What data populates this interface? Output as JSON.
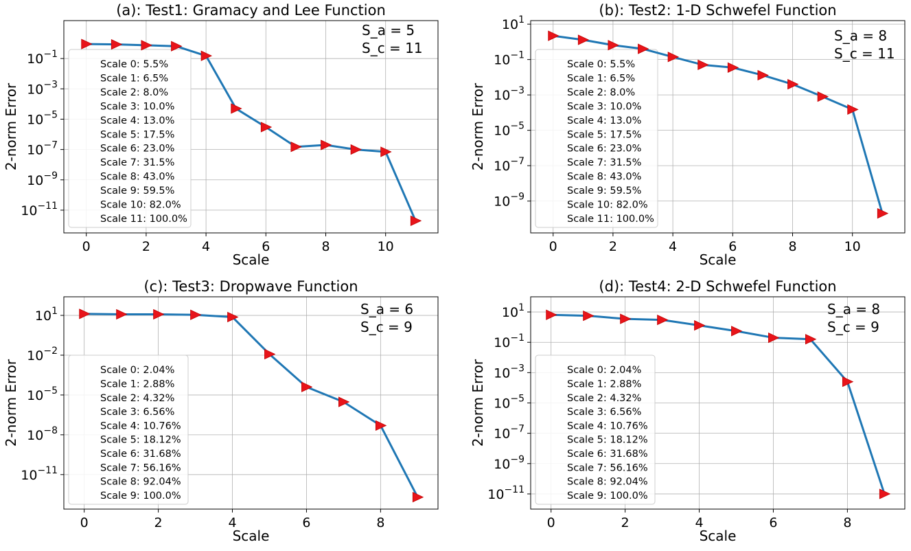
{
  "chart_data": [
    {
      "type": "line",
      "title": "(a): Test1: Gramacy and Lee Function",
      "xlabel": "Scale",
      "ylabel": "2-norm Error",
      "yscale": "log",
      "xlim": [
        -0.75,
        11.75
      ],
      "ylim_exp": [
        -12.5,
        1.5
      ],
      "xticks": [
        0,
        2,
        4,
        6,
        8,
        10
      ],
      "yticks_exp": [
        -11,
        -9,
        -7,
        -5,
        -3,
        -1
      ],
      "grid": true,
      "legend_position": "left",
      "marker": "triangle-right",
      "x": [
        0,
        1,
        2,
        3,
        4,
        5,
        6,
        7,
        8,
        9,
        10,
        11
      ],
      "y": [
        0.9,
        0.85,
        0.75,
        0.65,
        0.15,
        5e-05,
        3e-06,
        1.5e-07,
        2e-07,
        1e-07,
        7e-08,
        2e-12
      ],
      "annotations": [
        "S_a = 5",
        "S_c = 11"
      ],
      "legend": [
        "Scale 0:  5.5%",
        "Scale 1:  6.5%",
        "Scale 2:  8.0%",
        "Scale 3:  10.0%",
        "Scale 4:  13.0%",
        "Scale 5:  17.5%",
        "Scale 6:  23.0%",
        "Scale 7:  31.5%",
        "Scale 8:  43.0%",
        "Scale 9:  59.5%",
        "Scale 10: 82.0%",
        "Scale 11: 100.0%"
      ]
    },
    {
      "type": "line",
      "title": "(b): Test2: 1-D Schwefel Function",
      "xlabel": "Scale",
      "ylabel": "2-norm Error",
      "yscale": "log",
      "xlim": [
        -0.75,
        11.75
      ],
      "ylim_exp": [
        -10.8,
        1.2
      ],
      "xticks": [
        0,
        2,
        4,
        6,
        8,
        10
      ],
      "yticks_exp": [
        -9,
        -7,
        -5,
        -3,
        -1,
        1
      ],
      "grid": true,
      "legend_position": "left",
      "marker": "triangle-right",
      "x": [
        0,
        1,
        2,
        3,
        4,
        5,
        6,
        7,
        8,
        9,
        10,
        11
      ],
      "y": [
        2.2,
        1.3,
        0.65,
        0.4,
        0.14,
        0.05,
        0.035,
        0.013,
        0.004,
        0.0008,
        0.00015,
        2e-10
      ],
      "annotations": [
        "S_a = 8",
        "S_c = 11"
      ],
      "legend": [
        "Scale 0:  5.5%",
        "Scale 1:  6.5%",
        "Scale 2:  8.0%",
        "Scale 3:  10.0%",
        "Scale 4:  13.0%",
        "Scale 5:  17.5%",
        "Scale 6:  23.0%",
        "Scale 7:  31.5%",
        "Scale 8:  43.0%",
        "Scale 9:  59.5%",
        "Scale 10: 82.0%",
        "Scale 11: 100.0%"
      ]
    },
    {
      "type": "line",
      "title": "(c): Test3: Dropwave Function",
      "xlabel": "Scale",
      "ylabel": "2-norm Error",
      "yscale": "log",
      "xlim": [
        -0.55,
        9.55
      ],
      "ylim_exp": [
        -13.6,
        2.4
      ],
      "xticks": [
        0,
        2,
        4,
        6,
        8
      ],
      "yticks_exp": [
        -11,
        -8,
        -5,
        -2,
        1
      ],
      "grid": true,
      "legend_position": "lower left",
      "marker": "triangle-right",
      "x": [
        0,
        1,
        2,
        3,
        4,
        5,
        6,
        7,
        8,
        9
      ],
      "y": [
        13,
        12,
        12,
        11,
        7.5,
        0.012,
        4e-05,
        3e-06,
        5e-08,
        2e-13
      ],
      "annotations": [
        "S_a = 6",
        "S_c = 9"
      ],
      "legend": [
        "Scale 0:  2.04%",
        "Scale 1:  2.88%",
        "Scale 2:  4.32%",
        "Scale 3:  6.56%",
        "Scale 4:  10.76%",
        "Scale 5:  18.12%",
        "Scale 6:  31.68%",
        "Scale 7:  56.16%",
        "Scale 8:  92.04%",
        "Scale 9:  100.0%"
      ]
    },
    {
      "type": "line",
      "title": "(d): Test4: 2-D Schwefel Function",
      "xlabel": "Scale",
      "ylabel": "2-norm Error",
      "yscale": "log",
      "xlim": [
        -0.55,
        9.55
      ],
      "ylim_exp": [
        -12.0,
        2.0
      ],
      "xticks": [
        0,
        2,
        4,
        6,
        8
      ],
      "yticks_exp": [
        -11,
        -9,
        -7,
        -5,
        -3,
        -1,
        1
      ],
      "grid": true,
      "legend_position": "lower left",
      "marker": "triangle-right",
      "x": [
        0,
        1,
        2,
        3,
        4,
        5,
        6,
        7,
        8,
        9
      ],
      "y": [
        6.5,
        5.6,
        3.5,
        3.0,
        1.3,
        0.55,
        0.2,
        0.16,
        0.00025,
        1e-11
      ],
      "annotations": [
        "S_a = 8",
        "S_c = 9"
      ],
      "legend": [
        "Scale 0:  2.04%",
        "Scale 1:  2.88%",
        "Scale 2:  4.32%",
        "Scale 3:  6.56%",
        "Scale 4:  10.76%",
        "Scale 5:  18.12%",
        "Scale 6:  31.68%",
        "Scale 7:  56.16%",
        "Scale 8:  92.04%",
        "Scale 9:  100.0%"
      ]
    }
  ]
}
